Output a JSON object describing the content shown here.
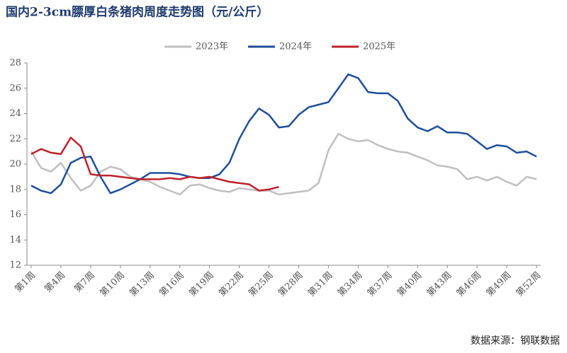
{
  "chart_data": {
    "type": "line",
    "title": "国内2-3cm膘厚白条猪肉周度走势图（元/公斤）",
    "source": "数据来源：钢联数据",
    "categories": [
      "第1周",
      null,
      null,
      "第4周",
      null,
      null,
      "第7周",
      null,
      null,
      "第10周",
      null,
      null,
      "第13周",
      null,
      null,
      "第16周",
      null,
      null,
      "第19周",
      null,
      null,
      "第22周",
      null,
      null,
      "第25周",
      null,
      null,
      "第28周",
      null,
      null,
      "第31周",
      null,
      null,
      "第34周",
      null,
      null,
      "第37周",
      null,
      null,
      "第40周",
      null,
      null,
      "第43周",
      null,
      null,
      "第46周",
      null,
      null,
      "第49周",
      null,
      null,
      "第52周"
    ],
    "series": [
      {
        "name": "2023年",
        "color": "#bfbfbf",
        "values": [
          21.0,
          19.7,
          19.4,
          20.1,
          18.9,
          17.9,
          18.3,
          19.4,
          19.8,
          19.6,
          19.0,
          18.8,
          18.6,
          18.2,
          17.9,
          17.6,
          18.3,
          18.4,
          18.1,
          17.9,
          17.8,
          18.1,
          18.0,
          17.9,
          17.9,
          17.6,
          17.7,
          17.8,
          17.9,
          18.5,
          21.1,
          22.4,
          22.0,
          21.8,
          21.9,
          21.5,
          21.2,
          21.0,
          20.9,
          20.6,
          20.3,
          19.9,
          19.8,
          19.6,
          18.8,
          19.0,
          18.7,
          19.0,
          18.6,
          18.3,
          19.0,
          18.8
        ]
      },
      {
        "name": "2024年",
        "color": "#1f4e99",
        "values": [
          18.3,
          17.9,
          17.7,
          18.4,
          20.1,
          20.5,
          20.6,
          19.0,
          17.7,
          18.0,
          18.4,
          18.8,
          19.3,
          19.3,
          19.3,
          19.2,
          19.0,
          18.9,
          18.9,
          19.2,
          20.1,
          22.0,
          23.4,
          24.4,
          23.9,
          22.9,
          23.0,
          23.9,
          24.5,
          24.7,
          24.9,
          26.0,
          27.1,
          26.8,
          25.7,
          25.6,
          25.6,
          25.0,
          23.6,
          22.9,
          22.6,
          23.0,
          22.5,
          22.5,
          22.4,
          21.8,
          21.2,
          21.5,
          21.4,
          20.9,
          21.0,
          20.6
        ]
      },
      {
        "name": "2025年",
        "color": "#c0202a",
        "values": [
          20.8,
          21.2,
          20.9,
          20.8,
          22.1,
          21.4,
          19.2,
          19.1,
          19.1,
          19.0,
          18.9,
          18.8,
          18.8,
          18.8,
          18.9,
          18.8,
          19.0,
          18.9,
          19.0,
          18.8,
          18.6,
          18.5,
          18.4,
          17.9,
          18.0,
          18.2,
          null,
          null,
          null,
          null,
          null,
          null,
          null,
          null,
          null,
          null,
          null,
          null,
          null,
          null,
          null,
          null,
          null,
          null,
          null,
          null,
          null,
          null,
          null,
          null,
          null,
          null
        ]
      }
    ],
    "ylim": [
      12,
      28
    ],
    "yticks": [
      12,
      14,
      16,
      18,
      20,
      22,
      24,
      26,
      28
    ],
    "legend": "top"
  }
}
